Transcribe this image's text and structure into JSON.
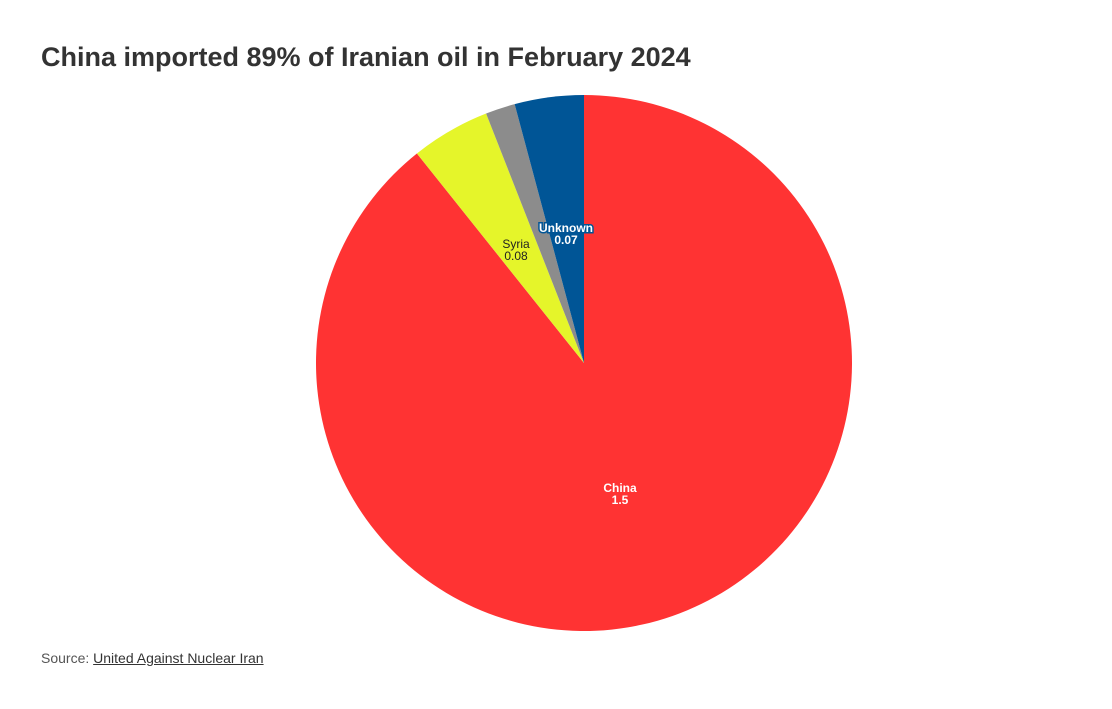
{
  "chart_data": {
    "type": "pie",
    "title": "China imported 89% of Iranian oil in February 2024",
    "slices": [
      {
        "label": "China",
        "value": 1.5,
        "color": "#FF3333",
        "show_label": true,
        "label_color": "#ffffff"
      },
      {
        "label": "Syria",
        "value": 0.08,
        "color": "#E5F52A",
        "show_label": true,
        "label_color": "#222222"
      },
      {
        "label": "",
        "value": 0.03,
        "color": "#8C8C8C",
        "show_label": false
      },
      {
        "label": "Unknown",
        "value": 0.07,
        "color": "#005596",
        "show_label": true,
        "label_color": "#ffffff"
      }
    ],
    "start": "12 o'clock",
    "direction": "clockwise"
  },
  "source": {
    "prefix": "Source: ",
    "link": "United Against Nuclear Iran"
  }
}
